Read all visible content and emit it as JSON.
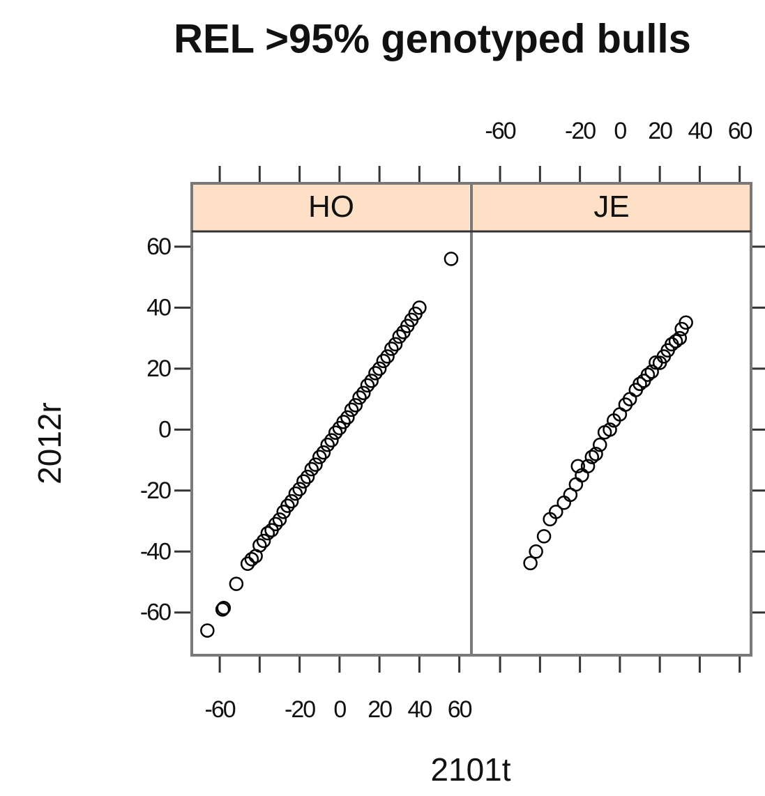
{
  "title": "REL >95% genotyped bulls",
  "xlabel": "2101t",
  "ylabel": "2012r",
  "chart_data": [
    {
      "type": "scatter",
      "title": "HO",
      "color": "#000000",
      "xlim": [
        -74,
        65
      ],
      "ylim": [
        -74,
        65
      ],
      "xticks": [
        -60,
        {
          "value": -40,
          "label": null
        },
        -20,
        0,
        20,
        40,
        60
      ],
      "yticks": [
        -60,
        -40,
        -20,
        0,
        20,
        40,
        60
      ],
      "x": [
        -66.2,
        -58.6,
        -58,
        -51.7,
        -46,
        -44,
        -42,
        -40,
        -38,
        -36,
        -34,
        -32,
        -30,
        -28,
        -26,
        -24,
        -22,
        -20,
        -18,
        -16,
        -14,
        -12,
        -10,
        -8,
        -6,
        -4,
        -2,
        0,
        2,
        4,
        6,
        8,
        10,
        12,
        14,
        16,
        18,
        20,
        22,
        24,
        26,
        28,
        30,
        32,
        34,
        36,
        38,
        40,
        55.9
      ],
      "values": [
        -65.9,
        -59,
        -58.5,
        -50.6,
        -44,
        -42.5,
        -41.5,
        -38,
        -36.5,
        -34,
        -33,
        -31,
        -29.5,
        -27,
        -25,
        -23.5,
        -21,
        -19.5,
        -17,
        -15.5,
        -13,
        -11.5,
        -9,
        -7.5,
        -5,
        -3.5,
        -1,
        0.5,
        2.5,
        4,
        6.5,
        8,
        10.5,
        12,
        14.5,
        16,
        18.5,
        20,
        22.5,
        24,
        26.5,
        28,
        30.5,
        32,
        34,
        36,
        38,
        40,
        56
      ]
    },
    {
      "type": "scatter",
      "title": "JE",
      "color": "#000000",
      "xlim": [
        -74,
        65
      ],
      "ylim": [
        -74,
        65
      ],
      "xticks": [
        -60,
        {
          "value": -40,
          "label": null
        },
        -20,
        0,
        20,
        40,
        60
      ],
      "x": [
        -44.8,
        -42,
        -38,
        -35,
        -32,
        -28,
        -24.8,
        -21,
        -22,
        -19,
        -16,
        -14,
        -12,
        -10,
        -7.6,
        -5,
        -3,
        0,
        2.8,
        5,
        8,
        10,
        12,
        14,
        16,
        18,
        20,
        22,
        24,
        26,
        28,
        30,
        31,
        33.1
      ],
      "values": [
        -43.8,
        -40,
        -35,
        -29.4,
        -27,
        -24,
        -21.4,
        -12,
        -18,
        -15,
        -12,
        -9,
        -8,
        -5,
        -0.9,
        0,
        3,
        5,
        8.2,
        10,
        13,
        15,
        16,
        18,
        19,
        22,
        21.9,
        24,
        26,
        28,
        29,
        30,
        33,
        35.1
      ]
    }
  ]
}
